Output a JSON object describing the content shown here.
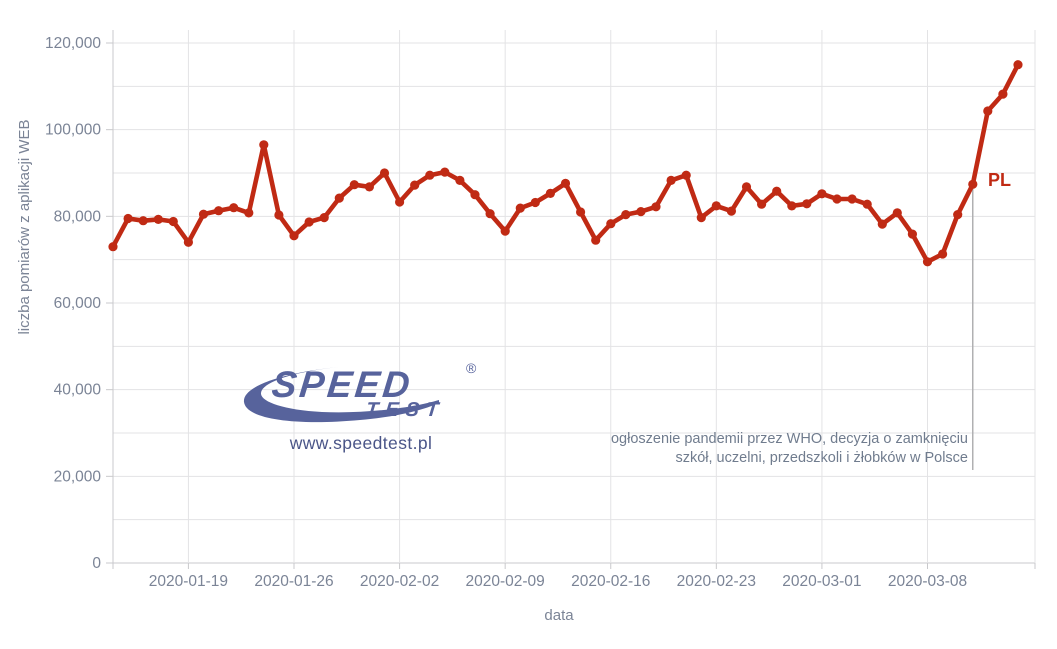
{
  "chart_data": {
    "type": "line",
    "title": "",
    "xlabel": "data",
    "ylabel": "liczba pomiarów z aplikacji WEB",
    "ylim": [
      0,
      120000
    ],
    "y_grid_step": 10000,
    "y_major_step": 20000,
    "grid": true,
    "legend": false,
    "y_tick_labels": [
      "0",
      "20,000",
      "40,000",
      "60,000",
      "80,000",
      "100,000",
      "120,000"
    ],
    "x_tick_labels": [
      "2020-01-19",
      "2020-01-26",
      "2020-02-02",
      "2020-02-09",
      "2020-02-16",
      "2020-02-23",
      "2020-03-01",
      "2020-03-08"
    ],
    "x_tick_indices": [
      5,
      12,
      19,
      26,
      33,
      40,
      47,
      54
    ],
    "x": [
      "2020-01-14",
      "2020-01-15",
      "2020-01-16",
      "2020-01-17",
      "2020-01-18",
      "2020-01-19",
      "2020-01-20",
      "2020-01-21",
      "2020-01-22",
      "2020-01-23",
      "2020-01-24",
      "2020-01-25",
      "2020-01-26",
      "2020-01-27",
      "2020-01-28",
      "2020-01-29",
      "2020-01-30",
      "2020-01-31",
      "2020-02-01",
      "2020-02-02",
      "2020-02-03",
      "2020-02-04",
      "2020-02-05",
      "2020-02-06",
      "2020-02-07",
      "2020-02-08",
      "2020-02-09",
      "2020-02-10",
      "2020-02-11",
      "2020-02-12",
      "2020-02-13",
      "2020-02-14",
      "2020-02-15",
      "2020-02-16",
      "2020-02-17",
      "2020-02-18",
      "2020-02-19",
      "2020-02-20",
      "2020-02-21",
      "2020-02-22",
      "2020-02-23",
      "2020-02-24",
      "2020-02-25",
      "2020-02-26",
      "2020-02-27",
      "2020-02-28",
      "2020-02-29",
      "2020-03-01",
      "2020-03-02",
      "2020-03-03",
      "2020-03-04",
      "2020-03-05",
      "2020-03-06",
      "2020-03-07",
      "2020-03-08",
      "2020-03-09",
      "2020-03-10",
      "2020-03-11",
      "2020-03-12",
      "2020-03-13",
      "2020-03-14"
    ],
    "series": [
      {
        "name": "PL",
        "color": "#c02a14",
        "values": [
          73000,
          79500,
          79000,
          79300,
          78800,
          74000,
          80500,
          81300,
          82000,
          80800,
          96500,
          80300,
          75500,
          78700,
          79700,
          84200,
          87300,
          86800,
          90000,
          83300,
          87200,
          89500,
          90200,
          88300,
          85000,
          80600,
          76600,
          81900,
          83200,
          85300,
          87600,
          81000,
          74500,
          78300,
          80400,
          81100,
          82200,
          88300,
          89500,
          79700,
          82400,
          81200,
          86800,
          82800,
          85800,
          82400,
          82900,
          85200,
          84000,
          84000,
          82800,
          78200,
          80800,
          75900,
          69500,
          71300,
          80400,
          87400,
          104300,
          108200,
          115000
        ]
      }
    ],
    "annotation_marker": {
      "date": "2020-03-11",
      "index": 57
    }
  },
  "annotation": {
    "line1": "ogłoszenie pandemii przez WHO, decyzja o zamknięciu",
    "line2": "szkół, uczelni, przedszkoli i żłobków w Polsce",
    "series_label": "PL"
  },
  "branding": {
    "logo_speed": "SPEED",
    "logo_test": "TEST",
    "registered": "®",
    "url": "www.speedtest.pl"
  },
  "colors": {
    "line": "#c02a14",
    "grid": "#e3e3e5",
    "axis": "#c9c9cc",
    "tick_text": "#7b8496",
    "annotation_line": "#b0b0b2",
    "logo_blue": "#57639c",
    "url_blue": "#4a5588",
    "annotation_text": "#707c8e"
  }
}
